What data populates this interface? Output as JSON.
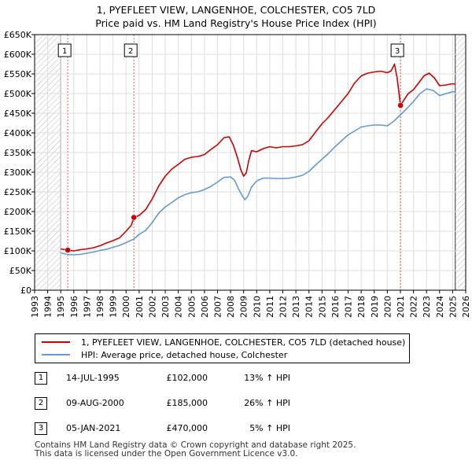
{
  "title": {
    "line1": "1, PYEFLEET VIEW, LANGENHOE, COLCHESTER, CO5 7LD",
    "line2": "Price paid vs. HM Land Registry's House Price Index (HPI)"
  },
  "chart_data": {
    "type": "line",
    "xlim": [
      1993,
      2026
    ],
    "ylim": [
      0,
      650000
    ],
    "x_ticks": [
      "1993",
      "1994",
      "1995",
      "1996",
      "1997",
      "1998",
      "1999",
      "2000",
      "2001",
      "2002",
      "2003",
      "2004",
      "2005",
      "2006",
      "2007",
      "2008",
      "2009",
      "2010",
      "2011",
      "2012",
      "2013",
      "2014",
      "2015",
      "2016",
      "2017",
      "2018",
      "2019",
      "2020",
      "2021",
      "2022",
      "2023",
      "2024",
      "2025",
      "2026"
    ],
    "y_ticks": [
      {
        "value": 0,
        "label": "£0"
      },
      {
        "value": 50000,
        "label": "£50K"
      },
      {
        "value": 100000,
        "label": "£100K"
      },
      {
        "value": 150000,
        "label": "£150K"
      },
      {
        "value": 200000,
        "label": "£200K"
      },
      {
        "value": 250000,
        "label": "£250K"
      },
      {
        "value": 300000,
        "label": "£300K"
      },
      {
        "value": 350000,
        "label": "£350K"
      },
      {
        "value": 400000,
        "label": "£400K"
      },
      {
        "value": 450000,
        "label": "£450K"
      },
      {
        "value": 500000,
        "label": "£500K"
      },
      {
        "value": 550000,
        "label": "£550K"
      },
      {
        "value": 600000,
        "label": "£600K"
      },
      {
        "value": 650000,
        "label": "£650K"
      }
    ],
    "hatch_regions": [
      [
        1993,
        1995.0
      ],
      [
        2025.2,
        2026
      ]
    ],
    "series": [
      {
        "name": "1, PYEFLEET VIEW, LANGENHOE, COLCHESTER, CO5 7LD (detached house)",
        "color": "#cc0000",
        "points": [
          [
            1995.0,
            105000
          ],
          [
            1995.54,
            102000
          ],
          [
            1996.0,
            100000
          ],
          [
            1996.5,
            103000
          ],
          [
            1997.0,
            105000
          ],
          [
            1997.5,
            108000
          ],
          [
            1998.0,
            113000
          ],
          [
            1998.5,
            120000
          ],
          [
            1999.0,
            126000
          ],
          [
            1999.5,
            133000
          ],
          [
            2000.0,
            150000
          ],
          [
            2000.4,
            165000
          ],
          [
            2000.6,
            185000
          ],
          [
            2001.0,
            190000
          ],
          [
            2001.5,
            205000
          ],
          [
            2002.0,
            232000
          ],
          [
            2002.5,
            265000
          ],
          [
            2003.0,
            290000
          ],
          [
            2003.5,
            308000
          ],
          [
            2004.0,
            320000
          ],
          [
            2004.5,
            333000
          ],
          [
            2005.0,
            338000
          ],
          [
            2005.5,
            340000
          ],
          [
            2006.0,
            345000
          ],
          [
            2006.5,
            358000
          ],
          [
            2007.0,
            370000
          ],
          [
            2007.5,
            388000
          ],
          [
            2007.9,
            390000
          ],
          [
            2008.2,
            370000
          ],
          [
            2008.5,
            340000
          ],
          [
            2008.8,
            305000
          ],
          [
            2009.0,
            290000
          ],
          [
            2009.2,
            298000
          ],
          [
            2009.4,
            330000
          ],
          [
            2009.6,
            355000
          ],
          [
            2010.0,
            352000
          ],
          [
            2010.5,
            360000
          ],
          [
            2011.0,
            365000
          ],
          [
            2011.5,
            362000
          ],
          [
            2012.0,
            365000
          ],
          [
            2012.5,
            365000
          ],
          [
            2013.0,
            367000
          ],
          [
            2013.5,
            370000
          ],
          [
            2014.0,
            380000
          ],
          [
            2014.5,
            402000
          ],
          [
            2015.0,
            423000
          ],
          [
            2015.5,
            440000
          ],
          [
            2016.0,
            460000
          ],
          [
            2016.5,
            480000
          ],
          [
            2017.0,
            500000
          ],
          [
            2017.5,
            527000
          ],
          [
            2018.0,
            545000
          ],
          [
            2018.5,
            552000
          ],
          [
            2019.0,
            555000
          ],
          [
            2019.5,
            557000
          ],
          [
            2020.0,
            553000
          ],
          [
            2020.3,
            558000
          ],
          [
            2020.55,
            575000
          ],
          [
            2020.75,
            540000
          ],
          [
            2021.01,
            470000
          ],
          [
            2021.3,
            485000
          ],
          [
            2021.6,
            500000
          ],
          [
            2022.0,
            510000
          ],
          [
            2022.4,
            527000
          ],
          [
            2022.8,
            545000
          ],
          [
            2023.2,
            552000
          ],
          [
            2023.6,
            540000
          ],
          [
            2024.0,
            520000
          ],
          [
            2024.5,
            522000
          ],
          [
            2025.0,
            525000
          ],
          [
            2025.2,
            524000
          ]
        ]
      },
      {
        "name": "HPI: Average price, detached house, Colchester",
        "color": "#6699cc",
        "points": [
          [
            1995.0,
            95000
          ],
          [
            1995.5,
            91000
          ],
          [
            1996.0,
            90000
          ],
          [
            1996.5,
            91000
          ],
          [
            1997.0,
            94000
          ],
          [
            1997.5,
            97000
          ],
          [
            1998.0,
            101000
          ],
          [
            1998.5,
            104000
          ],
          [
            1999.0,
            109000
          ],
          [
            1999.5,
            114000
          ],
          [
            2000.0,
            121000
          ],
          [
            2000.6,
            130000
          ],
          [
            2001.0,
            142000
          ],
          [
            2001.5,
            152000
          ],
          [
            2002.0,
            172000
          ],
          [
            2002.5,
            196000
          ],
          [
            2003.0,
            212000
          ],
          [
            2003.5,
            223000
          ],
          [
            2004.0,
            235000
          ],
          [
            2004.5,
            243000
          ],
          [
            2005.0,
            248000
          ],
          [
            2005.5,
            250000
          ],
          [
            2006.0,
            256000
          ],
          [
            2006.5,
            264000
          ],
          [
            2007.0,
            275000
          ],
          [
            2007.5,
            287000
          ],
          [
            2008.0,
            288000
          ],
          [
            2008.3,
            280000
          ],
          [
            2008.6,
            258000
          ],
          [
            2008.9,
            240000
          ],
          [
            2009.1,
            230000
          ],
          [
            2009.3,
            238000
          ],
          [
            2009.6,
            262000
          ],
          [
            2010.0,
            278000
          ],
          [
            2010.5,
            285000
          ],
          [
            2011.0,
            285000
          ],
          [
            2011.5,
            284000
          ],
          [
            2012.0,
            284000
          ],
          [
            2012.5,
            285000
          ],
          [
            2013.0,
            288000
          ],
          [
            2013.5,
            292000
          ],
          [
            2014.0,
            302000
          ],
          [
            2014.5,
            318000
          ],
          [
            2015.0,
            333000
          ],
          [
            2015.5,
            348000
          ],
          [
            2016.0,
            365000
          ],
          [
            2016.5,
            380000
          ],
          [
            2017.0,
            395000
          ],
          [
            2017.5,
            405000
          ],
          [
            2018.0,
            415000
          ],
          [
            2018.5,
            418000
          ],
          [
            2019.0,
            420000
          ],
          [
            2019.5,
            420000
          ],
          [
            2020.0,
            418000
          ],
          [
            2020.5,
            430000
          ],
          [
            2021.0,
            446000
          ],
          [
            2021.5,
            462000
          ],
          [
            2022.0,
            480000
          ],
          [
            2022.5,
            500000
          ],
          [
            2023.0,
            512000
          ],
          [
            2023.5,
            508000
          ],
          [
            2024.0,
            495000
          ],
          [
            2024.5,
            500000
          ],
          [
            2025.0,
            505000
          ],
          [
            2025.2,
            504000
          ]
        ]
      }
    ],
    "sales": [
      {
        "id": "1",
        "x": 1995.54,
        "price": 102000
      },
      {
        "id": "2",
        "x": 2000.6,
        "price": 185000
      },
      {
        "id": "3",
        "x": 2021.01,
        "price": 470000
      }
    ]
  },
  "legend": {
    "property_label": "1, PYEFLEET VIEW, LANGENHOE, COLCHESTER, CO5 7LD (detached house)",
    "hpi_label": "HPI: Average price, detached house, Colchester"
  },
  "sales_table": [
    {
      "id": "1",
      "date": "14-JUL-1995",
      "price": "£102,000",
      "hpi": "13% ↑ HPI"
    },
    {
      "id": "2",
      "date": "09-AUG-2000",
      "price": "£185,000",
      "hpi": "26% ↑ HPI"
    },
    {
      "id": "3",
      "date": "05-JAN-2021",
      "price": "£470,000",
      "hpi": "5% ↑ HPI"
    }
  ],
  "footer": {
    "line1": "Contains HM Land Registry data © Crown copyright and database right 2025.",
    "line2": "This data is licensed under the Open Government Licence v3.0."
  },
  "colors": {
    "property": "#cc0000",
    "hpi": "#6699cc",
    "grid": "#dddddd",
    "sale_line": "#cc0000"
  }
}
